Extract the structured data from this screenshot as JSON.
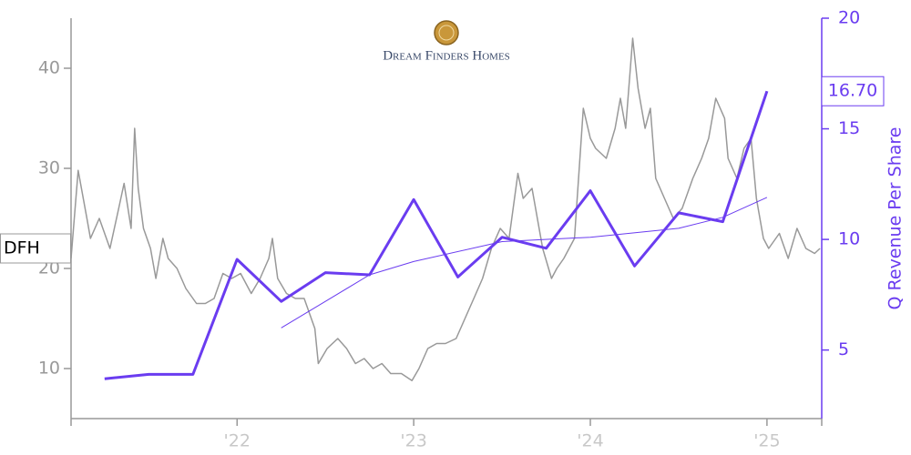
{
  "chart_data": {
    "type": "line",
    "logo": "Dream Finders Homes",
    "y2label": "Q Revenue Per Share",
    "xlim": [
      2021.06,
      2025.31
    ],
    "xticks": [
      {
        "value": 2022,
        "label": "'22"
      },
      {
        "value": 2023,
        "label": "'23"
      },
      {
        "value": 2024,
        "label": "'24"
      },
      {
        "value": 2025,
        "label": "'25"
      }
    ],
    "ylim": [
      5,
      45
    ],
    "yticks": [
      10,
      20,
      30,
      40
    ],
    "y2lim": [
      1.9,
      20
    ],
    "y2ticks": [
      5,
      10,
      15,
      20
    ],
    "series": [
      {
        "name": "DFH",
        "color": "#999999",
        "axis": "y",
        "x": [
          2021.06,
          2021.1,
          2021.15,
          2021.17,
          2021.22,
          2021.28,
          2021.33,
          2021.36,
          2021.4,
          2021.42,
          2021.44,
          2021.47,
          2021.51,
          2021.54,
          2021.58,
          2021.61,
          2021.66,
          2021.71,
          2021.77,
          2021.82,
          2021.87,
          2021.92,
          2021.97,
          2022.02,
          2022.08,
          2022.13,
          2022.18,
          2022.2,
          2022.23,
          2022.28,
          2022.33,
          2022.38,
          2022.44,
          2022.46,
          2022.51,
          2022.57,
          2022.62,
          2022.67,
          2022.72,
          2022.77,
          2022.82,
          2022.87,
          2022.93,
          2022.99,
          2023.03,
          2023.08,
          2023.13,
          2023.18,
          2023.24,
          2023.29,
          2023.34,
          2023.39,
          2023.44,
          2023.49,
          2023.54,
          2023.59,
          2023.62,
          2023.67,
          2023.73,
          2023.78,
          2023.81,
          2023.85,
          2023.91,
          2023.96,
          2024.0,
          2024.03,
          2024.09,
          2024.14,
          2024.17,
          2024.2,
          2024.24,
          2024.27,
          2024.31,
          2024.34,
          2024.37,
          2024.42,
          2024.47,
          2024.52,
          2024.58,
          2024.63,
          2024.67,
          2024.71,
          2024.76,
          2024.78,
          2024.83,
          2024.87,
          2024.91,
          2024.94,
          2024.98,
          2025.01,
          2025.07,
          2025.12,
          2025.17,
          2025.22,
          2025.27,
          2025.3
        ],
        "values": [
          21,
          29.8,
          25,
          23,
          25,
          22,
          26,
          28.5,
          24,
          34,
          28,
          24,
          22,
          19,
          23,
          21,
          20,
          18,
          16.5,
          16.5,
          17,
          19.5,
          19,
          19.5,
          17.5,
          19,
          21,
          23,
          19,
          17.5,
          17,
          17,
          14,
          10.5,
          12,
          13,
          12,
          10.5,
          11,
          10,
          10.5,
          9.5,
          9.5,
          8.8,
          10,
          12,
          12.5,
          12.5,
          13,
          15,
          17,
          19,
          22,
          24,
          23,
          29.5,
          27,
          28,
          22,
          19,
          20,
          21,
          23,
          36,
          33,
          32,
          31,
          34,
          37,
          34,
          43,
          38,
          34,
          36,
          29,
          27,
          25,
          26,
          29,
          31,
          33,
          37,
          35,
          31,
          29,
          32,
          33,
          27,
          23,
          22,
          23.5,
          21,
          24,
          22,
          21.5,
          22
        ]
      },
      {
        "color": "#6a3cf0",
        "axis": "y2",
        "x": [
          2021.25,
          2021.5,
          2021.75,
          2022,
          2022.25,
          2022.5,
          2022.75,
          2023,
          2023.25,
          2023.5,
          2023.75,
          2024,
          2024.25,
          2024.5,
          2024.75,
          2025
        ],
        "values": [
          3.7,
          3.9,
          3.9,
          9.1,
          7.2,
          8.5,
          8.4,
          11.8,
          8.3,
          10.1,
          9.6,
          12.2,
          8.8,
          11.2,
          10.8,
          16.7
        ],
        "value_labels": [
          null,
          null,
          null,
          null,
          null,
          null,
          null,
          null,
          null,
          null,
          null,
          null,
          null,
          null,
          null,
          "16.70"
        ]
      }
    ],
    "trend": {
      "color": "#6a3cf0",
      "axis": "y2",
      "x": [
        2022.25,
        2022.5,
        2022.75,
        2023,
        2023.5,
        2024,
        2024.5,
        2024.75,
        2025
      ],
      "values": [
        6.0,
        7.2,
        8.4,
        9.0,
        9.9,
        10.1,
        10.5,
        11.0,
        11.9
      ]
    }
  }
}
